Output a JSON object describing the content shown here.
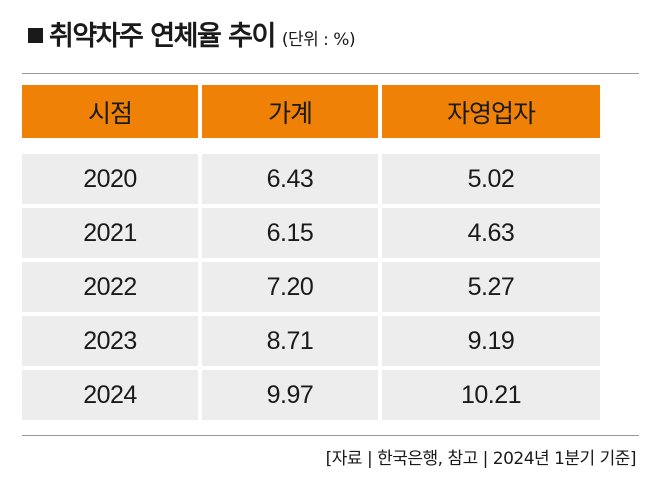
{
  "title": {
    "marker": "■",
    "main": "취약차주 연체율 추이",
    "unit": "(단위 : %)"
  },
  "table": {
    "headers": [
      "시점",
      "가계",
      "자영업자"
    ],
    "rows": [
      [
        "2020",
        "6.43",
        "5.02"
      ],
      [
        "2021",
        "6.15",
        "4.63"
      ],
      [
        "2022",
        "7.20",
        "5.27"
      ],
      [
        "2023",
        "8.71",
        "9.19"
      ],
      [
        "2024",
        "9.97",
        "10.21"
      ]
    ]
  },
  "source": "[자료 | 한국은행, 참고 | 2024년 1분기 기준]",
  "colors": {
    "header_bg": "#ef8206",
    "cell_bg": "#ededed"
  }
}
